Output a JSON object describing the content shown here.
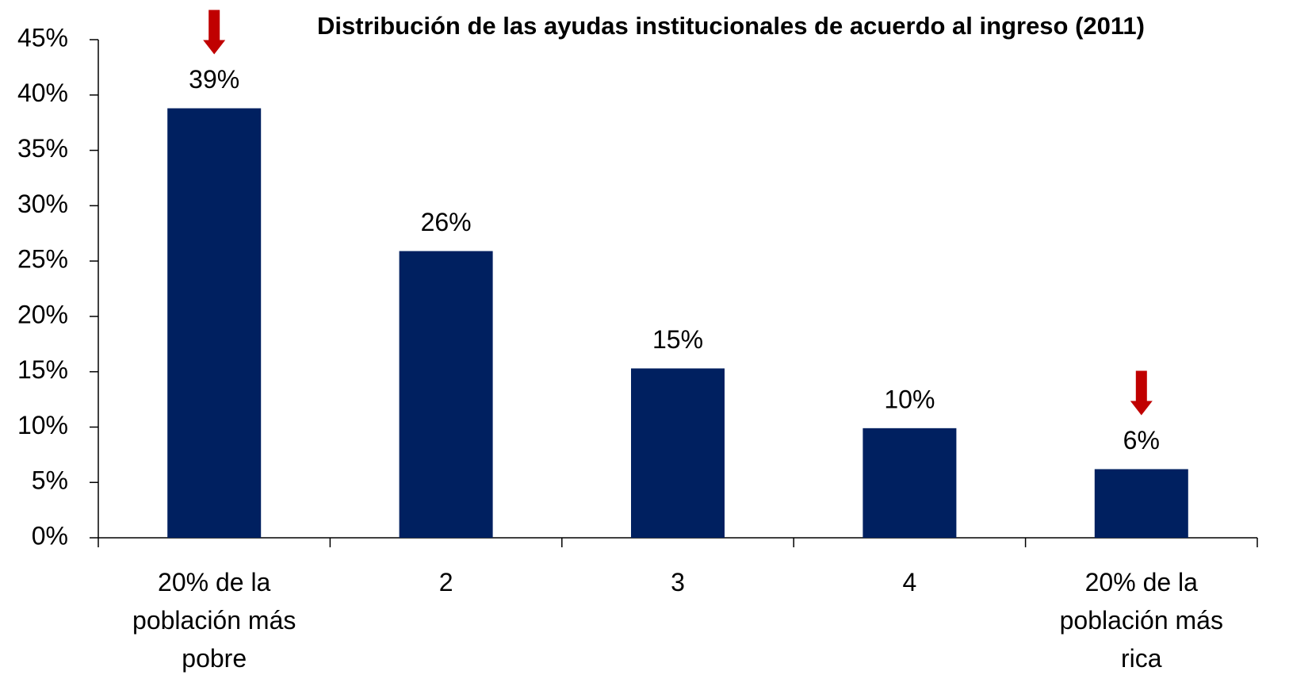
{
  "chart_data": {
    "type": "bar",
    "title": "Distribución de las ayudas institucionales de acuerdo al ingreso (2011)",
    "categories": [
      "20% de la población más pobre",
      "2",
      "3",
      "4",
      "20% de la población más rica"
    ],
    "values": [
      38.8,
      25.9,
      15.3,
      9.9,
      6.2
    ],
    "value_labels": [
      "39%",
      "26%",
      "15%",
      "10%",
      "6%"
    ],
    "color": "#002060",
    "ylim": [
      0,
      45
    ],
    "yticks": [
      {
        "value": 0,
        "label": "0%"
      },
      {
        "value": 5,
        "label": "5%"
      },
      {
        "value": 10,
        "label": "10%"
      },
      {
        "value": 15,
        "label": "15%"
      },
      {
        "value": 20,
        "label": "20%"
      },
      {
        "value": 25,
        "label": "25%"
      },
      {
        "value": 30,
        "label": "30%"
      },
      {
        "value": 35,
        "label": "35%"
      },
      {
        "value": 40,
        "label": "40%"
      },
      {
        "value": 45,
        "label": "45%"
      }
    ],
    "grid": false
  }
}
